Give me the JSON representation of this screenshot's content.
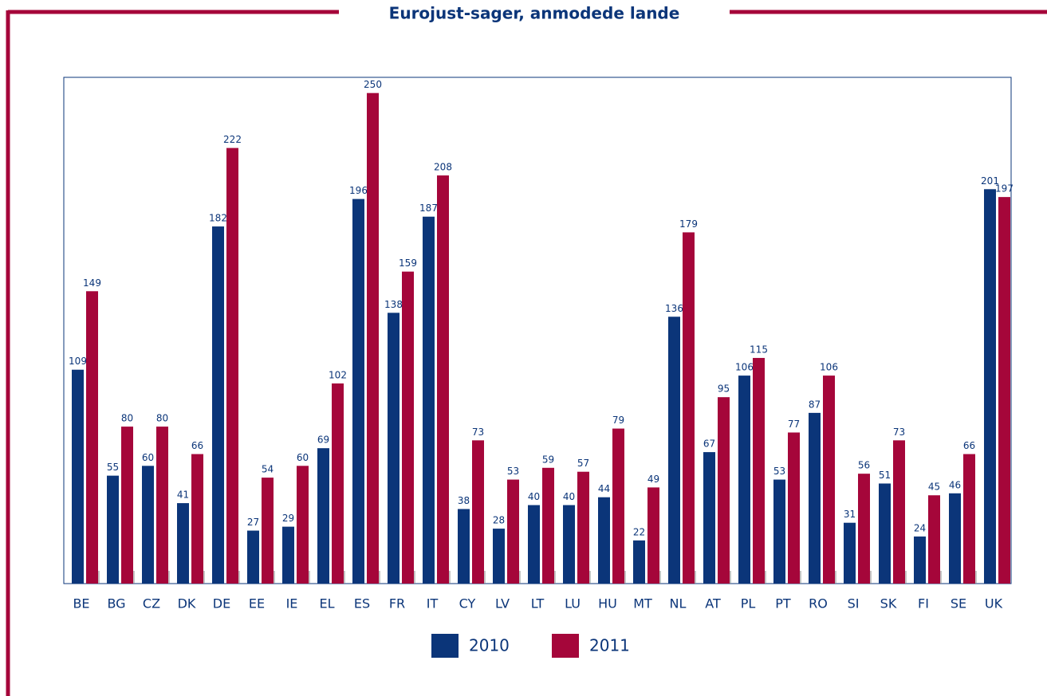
{
  "chart_data": {
    "type": "bar",
    "title": "Eurojust-sager, anmodede lande",
    "categories": [
      "BE",
      "BG",
      "CZ",
      "DK",
      "DE",
      "EE",
      "IE",
      "EL",
      "ES",
      "FR",
      "IT",
      "CY",
      "LV",
      "LT",
      "LU",
      "HU",
      "MT",
      "NL",
      "AT",
      "PL",
      "PT",
      "RO",
      "SI",
      "SK",
      "FI",
      "SE",
      "UK"
    ],
    "series": [
      {
        "name": "2010",
        "color": "#0b3579",
        "values": [
          109,
          55,
          60,
          41,
          182,
          27,
          29,
          69,
          196,
          138,
          187,
          38,
          28,
          40,
          40,
          44,
          22,
          136,
          67,
          106,
          53,
          87,
          31,
          51,
          24,
          46,
          201
        ]
      },
      {
        "name": "2011",
        "color": "#a5063a",
        "values": [
          149,
          80,
          80,
          66,
          222,
          54,
          60,
          102,
          250,
          159,
          208,
          73,
          53,
          59,
          57,
          79,
          49,
          179,
          95,
          115,
          77,
          106,
          56,
          73,
          45,
          66,
          197
        ]
      }
    ],
    "ylim": [
      0,
      258
    ],
    "legend": "bottom"
  }
}
